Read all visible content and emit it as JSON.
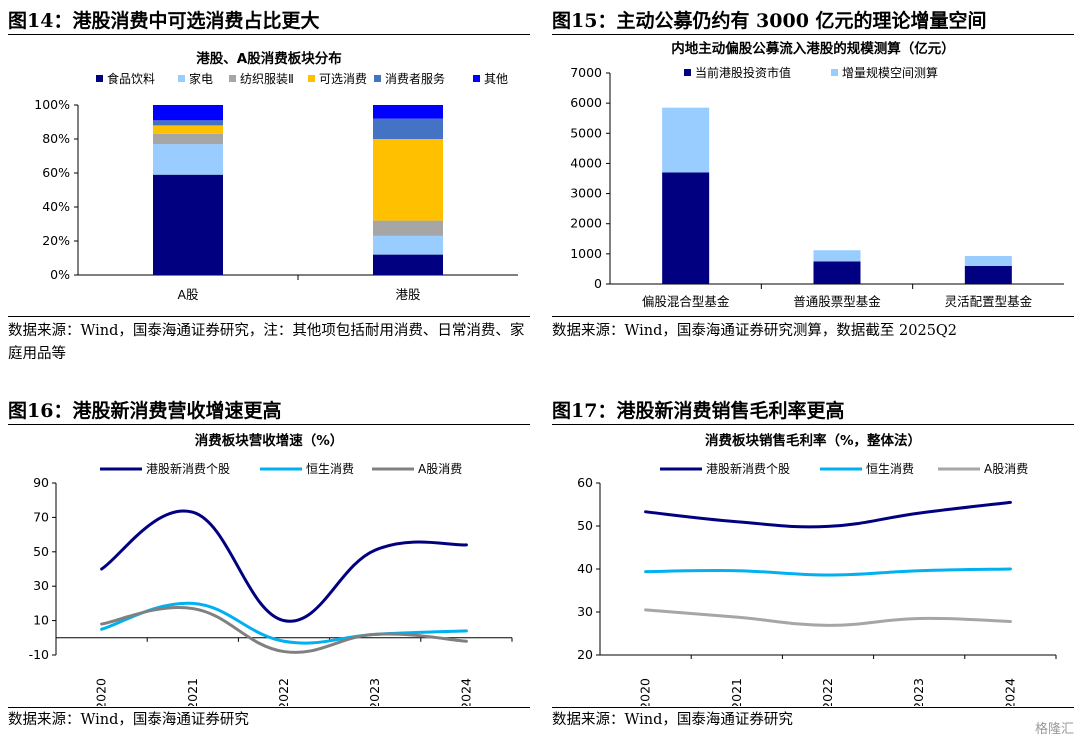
{
  "panels": [
    {
      "figure_title": "图14：港股消费中可选消费占比更大",
      "source": "数据来源：Wind，国泰海通证券研究，注：其他项包括耐用消费、日常消费、家庭用品等"
    },
    {
      "figure_title": "图15：主动公募仍约有 3000 亿元的理论增量空间",
      "source": "数据来源：Wind，国泰海通证券研究测算，数据截至 2025Q2"
    },
    {
      "figure_title": "图16：港股新消费营收增速更高",
      "source": "数据来源：Wind，国泰海通证券研究"
    },
    {
      "figure_title": "图17：港股新消费销售毛利率更高",
      "source": "数据来源：Wind，国泰海通证券研究"
    }
  ],
  "chart_data": [
    {
      "type": "bar",
      "stacked": true,
      "title": "港股、A股消费板块分布",
      "categories": [
        "A股",
        "港股"
      ],
      "ylim": [
        0,
        100
      ],
      "y_ticks": [
        "0%",
        "20%",
        "40%",
        "60%",
        "80%",
        "100%"
      ],
      "legend_position": "top",
      "series": [
        {
          "name": "食品饮料",
          "color": "#000080",
          "values": [
            59,
            12
          ]
        },
        {
          "name": "家电",
          "color": "#99CCFF",
          "values": [
            18,
            11
          ]
        },
        {
          "name": "纺织服装Ⅱ",
          "color": "#A6A6A6",
          "values": [
            6,
            9
          ]
        },
        {
          "name": "可选消费",
          "color": "#FFC000",
          "values": [
            5,
            48
          ]
        },
        {
          "name": "消费者服务",
          "color": "#4472C4",
          "values": [
            3,
            12
          ]
        },
        {
          "name": "其他",
          "color": "#0000FF",
          "values": [
            9,
            8
          ]
        }
      ]
    },
    {
      "type": "bar",
      "stacked": true,
      "title": "内地主动偏股公募流入港股的规模测算（亿元）",
      "categories": [
        "偏股混合型基金",
        "普通股票型基金",
        "灵活配置型基金"
      ],
      "ylim": [
        0,
        7000
      ],
      "y_ticks": [
        "0",
        "1000",
        "2000",
        "3000",
        "4000",
        "5000",
        "6000",
        "7000"
      ],
      "legend_position": "top",
      "series": [
        {
          "name": "当前港股投资市值",
          "color": "#000080",
          "values": [
            3700,
            750,
            600
          ]
        },
        {
          "name": "增量规模空间测算",
          "color": "#99CCFF",
          "values": [
            2150,
            370,
            330
          ]
        }
      ]
    },
    {
      "type": "line",
      "smooth": true,
      "title": "消费板块营收增速（%）",
      "x": [
        "2020",
        "2021",
        "2022",
        "2023",
        "2024"
      ],
      "ylim": [
        -10,
        90
      ],
      "y_ticks": [
        "-10",
        "10",
        "30",
        "50",
        "70",
        "90"
      ],
      "legend_position": "top",
      "series": [
        {
          "name": "港股新消费个股",
          "color": "#000080",
          "values": [
            40,
            73,
            10,
            51,
            54
          ]
        },
        {
          "name": "恒生消费",
          "color": "#00B0F0",
          "values": [
            5,
            20,
            -2,
            2,
            4
          ]
        },
        {
          "name": "A股消费",
          "color": "#808080",
          "values": [
            8,
            17,
            -8,
            2,
            -2
          ]
        }
      ]
    },
    {
      "type": "line",
      "smooth": true,
      "title": "消费板块销售毛利率（%，整体法）",
      "x": [
        "2020",
        "2021",
        "2022",
        "2023",
        "2024"
      ],
      "ylim": [
        20,
        60
      ],
      "y_ticks": [
        "20",
        "30",
        "40",
        "50",
        "60"
      ],
      "legend_position": "top",
      "series": [
        {
          "name": "港股新消费个股",
          "color": "#000080",
          "values": [
            53.3,
            51,
            49.9,
            53,
            55.5
          ]
        },
        {
          "name": "恒生消费",
          "color": "#00B0F0",
          "values": [
            39.4,
            39.6,
            38.6,
            39.6,
            40
          ]
        },
        {
          "name": "A股消费",
          "color": "#A6A6A6",
          "values": [
            30.5,
            28.8,
            26.9,
            28.5,
            27.8
          ]
        }
      ]
    }
  ],
  "watermark": "格隆汇"
}
